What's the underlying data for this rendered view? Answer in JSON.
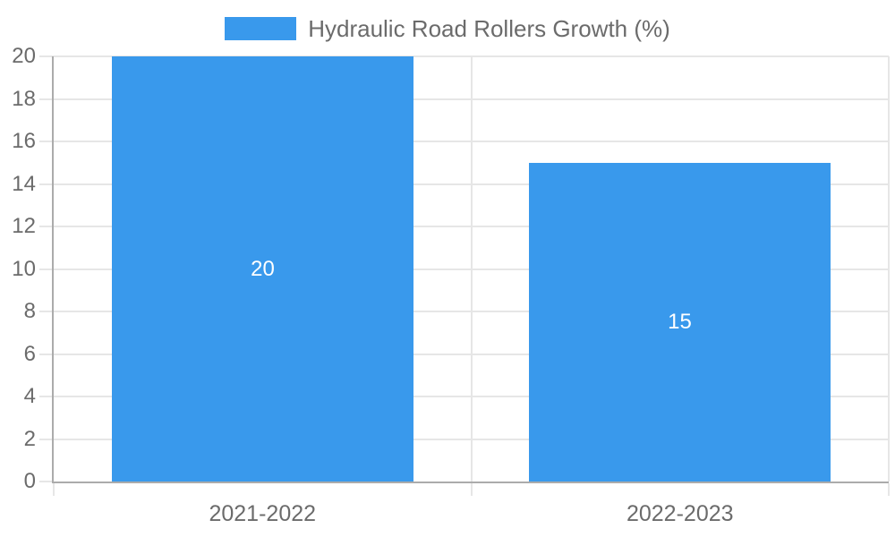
{
  "chart_data": {
    "type": "bar",
    "title": "Hydraulic Road Rollers Growth (%)",
    "categories": [
      "2021-2022",
      "2022-2023"
    ],
    "series": [
      {
        "name": "Hydraulic Road Rollers Growth (%)",
        "values": [
          20,
          15
        ]
      }
    ],
    "bar_value_labels": [
      "20",
      "15"
    ],
    "xlabel": "",
    "ylabel": "",
    "ylim": [
      0,
      20
    ],
    "ytick_step": 2,
    "ytick_labels": [
      "0",
      "2",
      "4",
      "6",
      "8",
      "10",
      "12",
      "14",
      "16",
      "18",
      "20"
    ],
    "grid": true,
    "legend_position": "top-center",
    "colors": {
      "bar": "#3999EC",
      "bar_label_text": "#FFFFFF",
      "grid_line": "#E6E6E6",
      "axis_line": "#ABABAB",
      "tick_text": "#6B6B6B",
      "legend_text": "#6B6B6B",
      "background": "#FFFFFF"
    }
  },
  "legend": {
    "label": "Hydraulic Road Rollers Growth (%)"
  }
}
